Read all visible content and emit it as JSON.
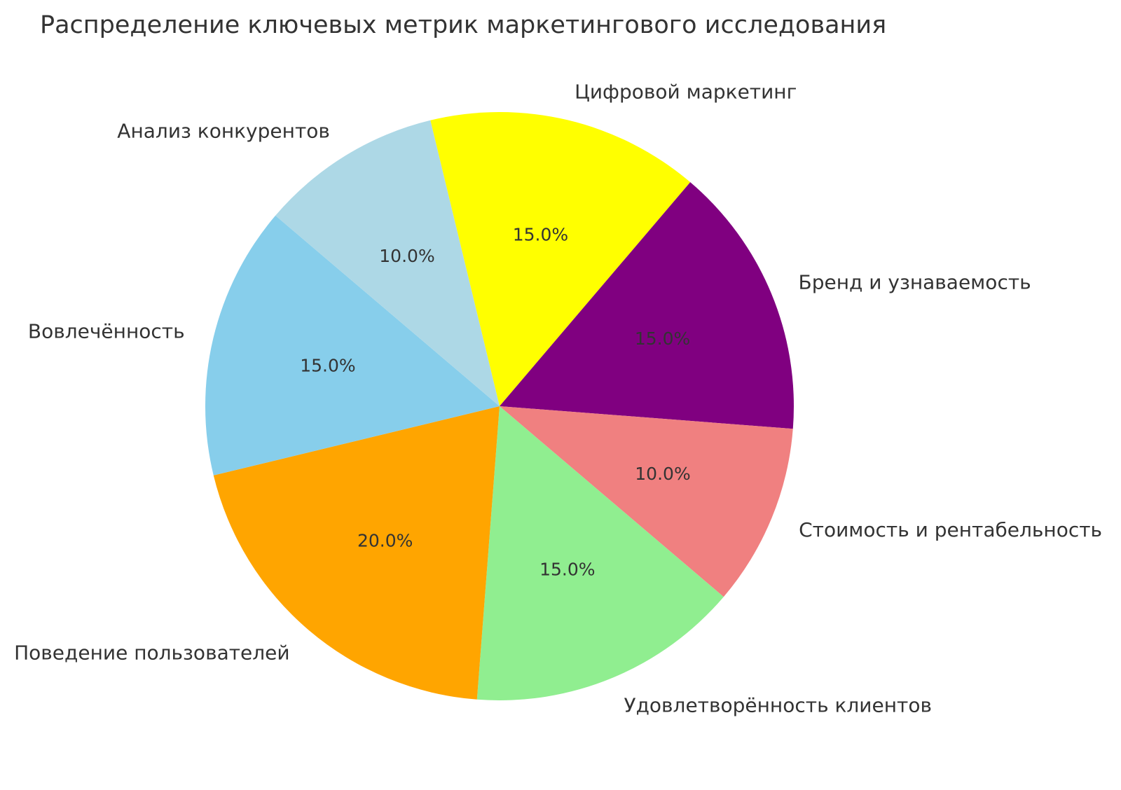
{
  "chart_data": {
    "type": "pie",
    "title": "Распределение ключевых метрик маркетингового исследования",
    "direction": "clockwise",
    "start_angle_deg": 103.6,
    "legend": "none",
    "slices": [
      {
        "label": "Цифровой маркетинг",
        "value": 15.0,
        "pct_label": "15.0%",
        "color": "#ffff00"
      },
      {
        "label": "Бренд и узнаваемость",
        "value": 15.0,
        "pct_label": "15.0%",
        "color": "#800080"
      },
      {
        "label": "Стоимость и рентабельность",
        "value": 10.0,
        "pct_label": "10.0%",
        "color": "#f08080"
      },
      {
        "label": "Удовлетворённость клиентов",
        "value": 15.0,
        "pct_label": "15.0%",
        "color": "#90ee90"
      },
      {
        "label": "Поведение пользователей",
        "value": 20.0,
        "pct_label": "20.0%",
        "color": "#ffa500"
      },
      {
        "label": "Вовлечённость",
        "value": 15.0,
        "pct_label": "15.0%",
        "color": "#87ceeb"
      },
      {
        "label": "Анализ конкурентов",
        "value": 10.0,
        "pct_label": "10.0%",
        "color": "#add8e6"
      }
    ],
    "text_color": "#333333"
  }
}
